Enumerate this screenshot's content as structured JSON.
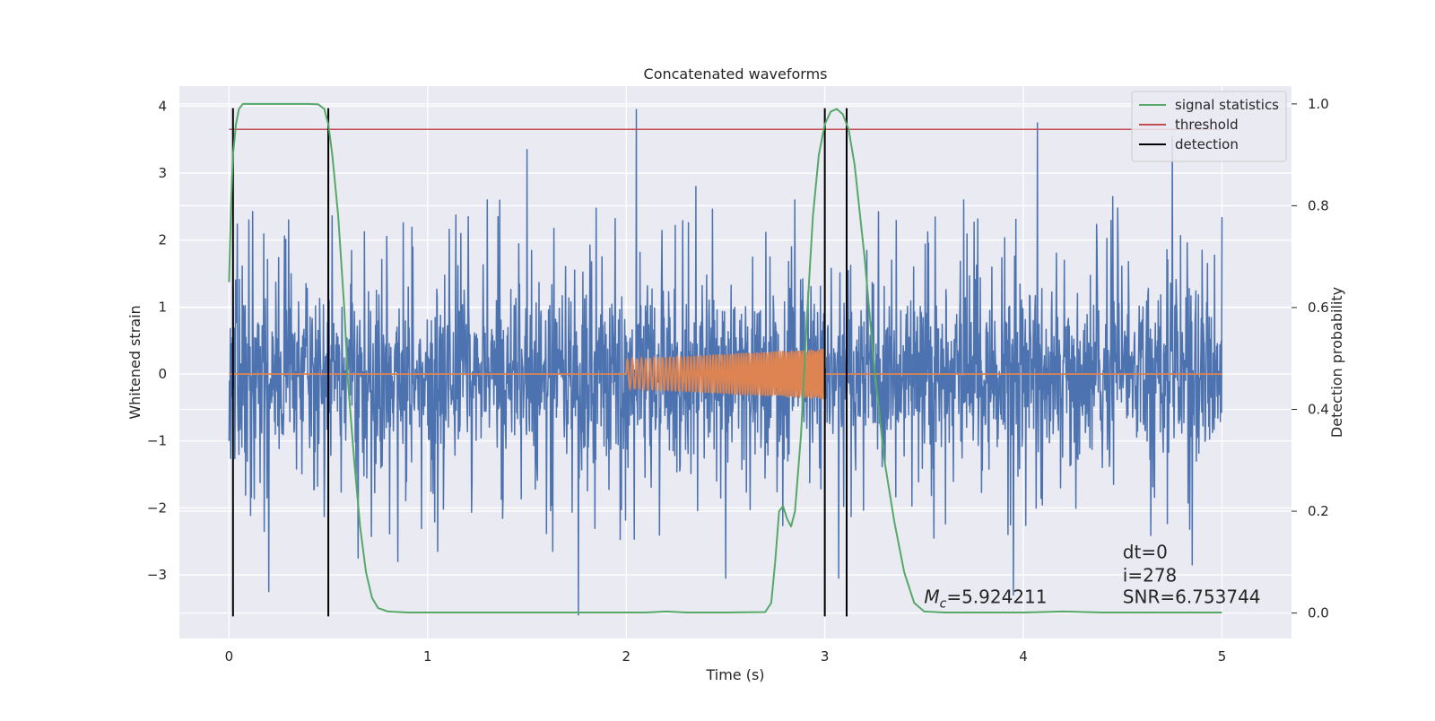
{
  "chart_data": {
    "type": "line",
    "title": "Concatenated waveforms",
    "xlabel": "Time (s)",
    "ylabel_left": "Whitened strain",
    "ylabel_right": "Detection probability",
    "xlim": [
      -0.25,
      5.35
    ],
    "ylim_left": [
      -3.95,
      4.3
    ],
    "ylim_right": [
      -0.05,
      1.035
    ],
    "x_ticks": [
      0,
      1,
      2,
      3,
      4,
      5
    ],
    "x_tick_labels": [
      "0",
      "1",
      "2",
      "3",
      "4",
      "5"
    ],
    "y_left_ticks": [
      -3,
      -2,
      -1,
      0,
      1,
      2,
      3,
      4
    ],
    "y_left_tick_labels": [
      "−3",
      "−2",
      "−1",
      "0",
      "1",
      "2",
      "3",
      "4"
    ],
    "y_right_ticks": [
      0.0,
      0.2,
      0.4,
      0.6,
      0.8,
      1.0
    ],
    "y_right_tick_labels": [
      "0.0",
      "0.2",
      "0.4",
      "0.6",
      "0.8",
      "1.0"
    ],
    "grid": true,
    "legend_position": "top-right",
    "background": "#eaeaf2",
    "series": [
      {
        "name": "",
        "axis": "left",
        "kind": "noise",
        "color": "#4c72b0",
        "x_range": [
          0,
          5
        ],
        "std": 0.95,
        "peaks": [
          [
            0.02,
            1.3
          ],
          [
            0.05,
            -1.2
          ],
          [
            0.1,
            2.3
          ],
          [
            0.2,
            -3.25
          ],
          [
            0.3,
            2.3
          ],
          [
            0.5,
            1.75
          ],
          [
            0.65,
            -2.75
          ],
          [
            0.85,
            -2.8
          ],
          [
            1.05,
            -2.65
          ],
          [
            1.3,
            2.6
          ],
          [
            1.5,
            3.35
          ],
          [
            1.63,
            -2.65
          ],
          [
            1.76,
            -3.6
          ],
          [
            2.05,
            3.95
          ],
          [
            2.35,
            2.8
          ],
          [
            2.5,
            -3.05
          ],
          [
            2.85,
            2.6
          ],
          [
            3.07,
            -3.05
          ],
          [
            3.55,
            -2.45
          ],
          [
            3.7,
            2.6
          ],
          [
            3.95,
            -3.3
          ],
          [
            4.07,
            3.75
          ],
          [
            4.45,
            2.65
          ],
          [
            4.75,
            3.55
          ],
          [
            4.85,
            -2.85
          ]
        ]
      },
      {
        "name": "",
        "axis": "left",
        "kind": "chirp",
        "color": "#dd8452",
        "x_range": [
          0,
          5
        ],
        "chirp_start": 2.0,
        "chirp_end": 3.0,
        "amp_start": 0.22,
        "amp_end": 0.38,
        "freq_start": 40,
        "freq_end": 70
      },
      {
        "name": "signal statistics",
        "axis": "right",
        "kind": "line",
        "color": "#55a868",
        "x": [
          0.0,
          0.01,
          0.02,
          0.035,
          0.05,
          0.07,
          0.1,
          0.2,
          0.3,
          0.4,
          0.45,
          0.48,
          0.5,
          0.52,
          0.55,
          0.58,
          0.6,
          0.63,
          0.66,
          0.69,
          0.72,
          0.75,
          0.8,
          0.9,
          1.0,
          1.5,
          2.0,
          2.1,
          2.2,
          2.3,
          2.5,
          2.7,
          2.73,
          2.75,
          2.77,
          2.79,
          2.81,
          2.83,
          2.85,
          2.88,
          2.91,
          2.94,
          2.97,
          3.0,
          3.03,
          3.06,
          3.09,
          3.12,
          3.15,
          3.2,
          3.25,
          3.3,
          3.35,
          3.4,
          3.45,
          3.5,
          3.6,
          3.8,
          4.0,
          4.2,
          4.4,
          4.6,
          4.8,
          5.0
        ],
        "y": [
          0.65,
          0.8,
          0.9,
          0.96,
          0.99,
          1.0,
          1.0,
          1.0,
          1.0,
          1.0,
          0.999,
          0.99,
          0.96,
          0.9,
          0.78,
          0.6,
          0.45,
          0.3,
          0.17,
          0.08,
          0.03,
          0.01,
          0.003,
          0.001,
          0.001,
          0.001,
          0.001,
          0.001,
          0.003,
          0.001,
          0.001,
          0.002,
          0.02,
          0.1,
          0.2,
          0.21,
          0.185,
          0.17,
          0.2,
          0.35,
          0.58,
          0.78,
          0.9,
          0.96,
          0.985,
          0.99,
          0.98,
          0.95,
          0.88,
          0.7,
          0.48,
          0.3,
          0.18,
          0.08,
          0.02,
          0.003,
          0.001,
          0.001,
          0.001,
          0.003,
          0.001,
          0.001,
          0.001,
          0.001
        ]
      },
      {
        "name": "threshold",
        "axis": "right",
        "kind": "hline",
        "color": "#c44e52",
        "y": 0.95,
        "x_range": [
          0,
          5
        ]
      },
      {
        "name": "detection",
        "axis": "left",
        "kind": "vlines",
        "color": "#000000",
        "x": [
          0.02,
          0.5,
          3.0,
          3.11
        ],
        "y_range": [
          -3.62,
          3.97
        ]
      }
    ],
    "annotations": [
      {
        "text": "dt=0",
        "x": 4.5,
        "y": -2.75
      },
      {
        "text": "i=278",
        "x": 4.5,
        "y": -3.1
      },
      {
        "text": "SNR=6.753744",
        "x": 4.5,
        "y": -3.42
      },
      {
        "text_main": "M",
        "text_sub": "c",
        "text_rest": "=5.924211",
        "x": 3.5,
        "y": -3.42
      }
    ]
  }
}
